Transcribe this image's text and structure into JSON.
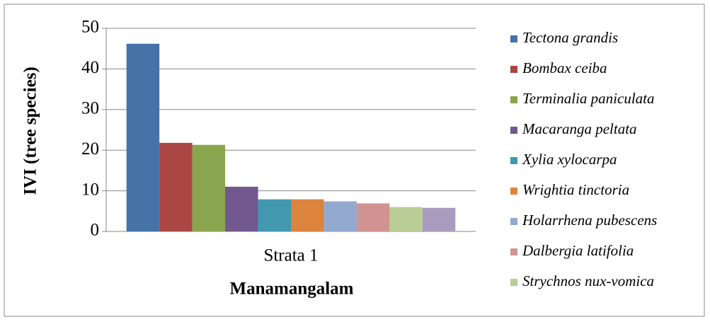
{
  "chart_data": {
    "type": "bar",
    "y_axis_title": "IVI (tree species)",
    "x_axis_title": "Manamangalam",
    "categories": [
      "Strata 1"
    ],
    "ylim": [
      0,
      50
    ],
    "yticks": [
      0,
      10,
      20,
      30,
      40,
      50
    ],
    "grid": true,
    "legend": "right",
    "series": [
      {
        "name": "Tectona grandis",
        "color": "#4572a7",
        "values": [
          46.2
        ]
      },
      {
        "name": "Bombax ceiba",
        "color": "#aa4643",
        "values": [
          21.8
        ]
      },
      {
        "name": "Terminalia paniculata",
        "color": "#89a54e",
        "values": [
          21.3
        ]
      },
      {
        "name": "Macaranga peltata",
        "color": "#71588f",
        "values": [
          11
        ]
      },
      {
        "name": "Xylia xylocarpa",
        "color": "#4198af",
        "values": [
          7.9
        ]
      },
      {
        "name": "Wrightia tinctoria",
        "color": "#db843d",
        "values": [
          7.9
        ]
      },
      {
        "name": "Holarrhena pubescens",
        "color": "#93a9cf",
        "values": [
          7.4
        ]
      },
      {
        "name": "Dalbergia latifolia",
        "color": "#d19392",
        "values": [
          6.9
        ]
      },
      {
        "name": "Strychnos nux-vomica",
        "color": "#b9cd96",
        "values": [
          6.0
        ]
      },
      {
        "name": null,
        "color": "#a99bbd",
        "values": [
          5.8
        ]
      }
    ]
  }
}
